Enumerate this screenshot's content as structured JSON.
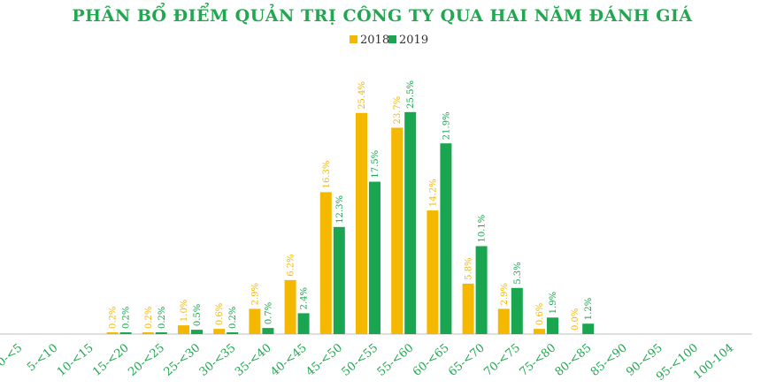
{
  "colors": {
    "title": "#1fa84f",
    "series_2018": "#f5b800",
    "series_2019": "#1aa650",
    "axis": "#bfbfbf",
    "tick": "#1fa84f"
  },
  "chart_data": {
    "type": "bar",
    "title": "PHÂN BỔ ĐIỂM QUẢN TRỊ CÔNG TY QUA HAI NĂM ĐÁNH GIÁ",
    "legend_position": "top-center",
    "grid": false,
    "ylim": [
      0,
      27
    ],
    "categories": [
      "0-<5",
      "5-<10",
      "10-<15",
      "15-<20",
      "20-<25",
      "25-<30",
      "30-<35",
      "35-<40",
      "40-<45",
      "45-<50",
      "50-<55",
      "55-<60",
      "60-<65",
      "65-<70",
      "70-<75",
      "75-<80",
      "80-<85",
      "85-<90",
      "90-<95",
      "95-<100",
      "100-104"
    ],
    "series": [
      {
        "name": "2018",
        "values": [
          null,
          null,
          null,
          0.2,
          0.2,
          1.0,
          0.6,
          2.9,
          6.2,
          16.3,
          25.4,
          23.7,
          14.2,
          5.8,
          2.9,
          0.6,
          0.0,
          null,
          null,
          null,
          null
        ],
        "labels": [
          "",
          "",
          "",
          "0.2%",
          "0.2%",
          "1.0%",
          "0.6%",
          "2.9%",
          "6.2%",
          "16.3%",
          "25.4%",
          "23.7%",
          "14.2%",
          "5.8%",
          "2.9%",
          "0.6%",
          "0.0%",
          "",
          "",
          "",
          ""
        ]
      },
      {
        "name": "2019",
        "values": [
          null,
          null,
          null,
          0.2,
          0.2,
          0.5,
          0.2,
          0.7,
          2.4,
          12.3,
          17.5,
          25.5,
          21.9,
          10.1,
          5.3,
          1.9,
          1.2,
          null,
          null,
          null,
          null
        ],
        "labels": [
          "",
          "",
          "",
          "0.2%",
          "0.2%",
          "0.5%",
          "0.2%",
          "0.7%",
          "2.4%",
          "12.3%",
          "17.5%",
          "25.5%",
          "21.9%",
          "10.1%",
          "5.3%",
          "1.9%",
          "1.2%",
          "",
          "",
          "",
          ""
        ]
      }
    ]
  }
}
